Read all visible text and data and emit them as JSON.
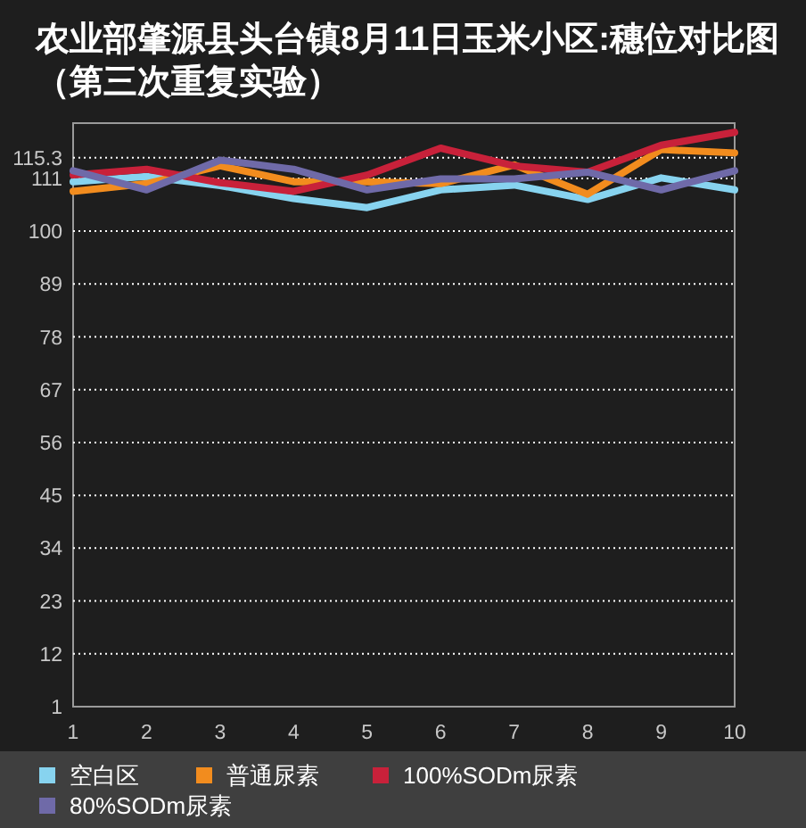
{
  "chart_data": {
    "type": "line",
    "title": "农业部肇源县头台镇8月11日玉米小区:穗位对比图（第三次重复实验）",
    "x": [
      1,
      2,
      3,
      4,
      5,
      6,
      7,
      8,
      9,
      10
    ],
    "xlim": [
      1,
      10
    ],
    "xticks": [
      1,
      2,
      3,
      4,
      5,
      6,
      7,
      8,
      9,
      10
    ],
    "ylim": [
      1,
      122.5
    ],
    "yticks": [
      1,
      12,
      23,
      34,
      45,
      56,
      67,
      78,
      89,
      100,
      111,
      115.3
    ],
    "grid": "y",
    "legend": "bottom",
    "marker": "none",
    "line_style": "solid",
    "series": [
      {
        "name": "空白区",
        "color": "#87d3ef",
        "values": [
          110.3,
          111.4,
          109.5,
          106.8,
          104.9,
          108.6,
          109.6,
          106.6,
          111.1,
          108.6
        ]
      },
      {
        "name": "普通尿素",
        "color": "#f28c1e",
        "values": [
          108.3,
          109.9,
          113.6,
          110.3,
          110.3,
          109.9,
          113.8,
          107.7,
          117.0,
          116.3
        ]
      },
      {
        "name": "100%SODm尿素",
        "color": "#c8213a",
        "values": [
          111.7,
          112.9,
          110.1,
          108.3,
          111.7,
          117.3,
          113.6,
          112.3,
          117.9,
          120.6
        ]
      },
      {
        "name": "80%SODm尿素",
        "color": "#6f6aa8",
        "values": [
          112.6,
          108.6,
          114.8,
          112.9,
          108.6,
          110.9,
          110.9,
          112.3,
          108.6,
          112.6
        ]
      }
    ]
  }
}
